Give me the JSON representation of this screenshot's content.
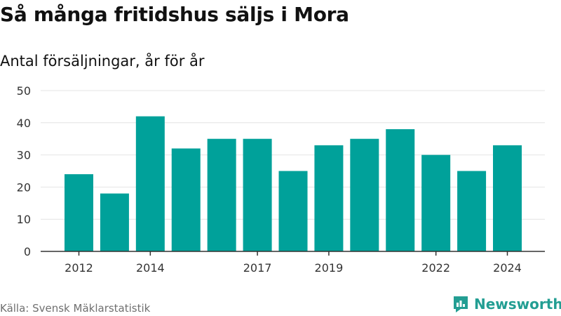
{
  "header": {
    "title": "Så många fritidshus säljs i Mora",
    "subtitle": "Antal försäljningar, år för år"
  },
  "footer": {
    "source": "Källa: Svensk Mäklarstatistik",
    "brand": "Newsworthy"
  },
  "colors": {
    "bar": "#00a19a",
    "brand": "#239e93",
    "grid": "#e4e4e4",
    "axis": "#333333"
  },
  "chart_data": {
    "type": "bar",
    "categories": [
      "2012",
      "2013",
      "2014",
      "2015",
      "2016",
      "2017",
      "2018",
      "2019",
      "2020",
      "2021",
      "2022",
      "2023",
      "2024"
    ],
    "values": [
      24,
      18,
      42,
      32,
      35,
      35,
      25,
      33,
      35,
      38,
      30,
      25,
      33
    ],
    "x_tick_labels": [
      "2012",
      "2014",
      "2017",
      "2019",
      "2022",
      "2024"
    ],
    "y_ticks": [
      0,
      10,
      20,
      30,
      40,
      50
    ],
    "ylim": [
      0,
      50
    ],
    "grid": true,
    "title": "Så många fritidshus säljs i Mora",
    "subtitle": "Antal försäljningar, år för år"
  }
}
